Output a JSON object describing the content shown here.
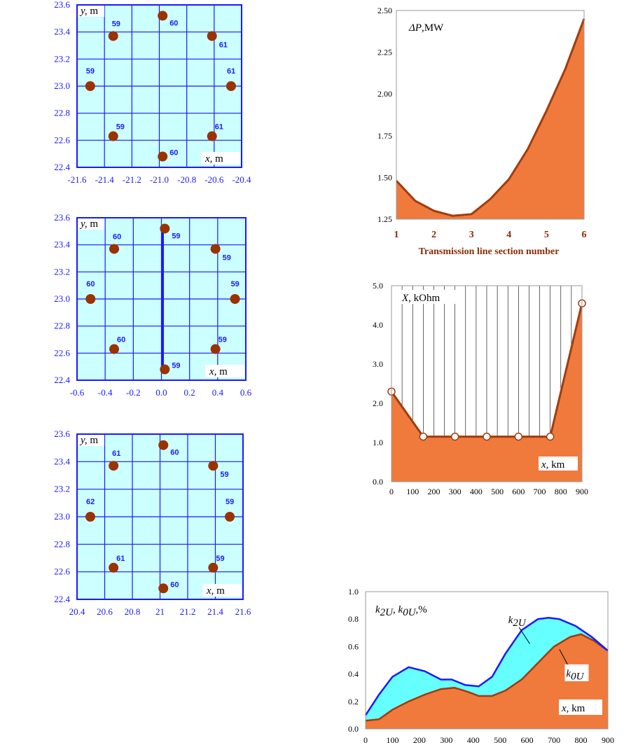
{
  "colors": {
    "panel_bg": "#ccffff",
    "grid": "#1a1aff",
    "dot": "#993300",
    "fill_orange": "#f07a3c",
    "curve_brown": "#a03c10",
    "curve_blue": "#1a1aff",
    "fill_cyan": "#66ffff",
    "brown_text": "#8a2c08"
  },
  "chart_data": [
    {
      "type": "scatter",
      "id": "cond1",
      "ylabel_var": "y,",
      "ylabel_unit": "m",
      "xlabel_var": "x,",
      "xlabel_unit": "m",
      "xlim": [
        -21.65,
        -20.4
      ],
      "ylim": [
        22.4,
        23.6
      ],
      "xticks": [
        "-21.6",
        "-21.4",
        "-21.2",
        "-21.0",
        "-20.8",
        "-20.6",
        "-20.4"
      ],
      "yticks": [
        "23.6",
        "23.4",
        "23.2",
        "23.0",
        "22.8",
        "22.6",
        "22.4"
      ],
      "vertical_line": false,
      "points": [
        {
          "x": -21.0,
          "y": 23.52,
          "label": "60"
        },
        {
          "x": -21.375,
          "y": 23.37,
          "label": "59"
        },
        {
          "x": -20.625,
          "y": 23.37,
          "label": "61"
        },
        {
          "x": -21.55,
          "y": 23.0,
          "label": "59"
        },
        {
          "x": -20.48,
          "y": 23.0,
          "label": "61"
        },
        {
          "x": -21.375,
          "y": 22.63,
          "label": "59"
        },
        {
          "x": -20.625,
          "y": 22.63,
          "label": "61"
        },
        {
          "x": -21.0,
          "y": 22.48,
          "label": "60"
        }
      ]
    },
    {
      "type": "scatter",
      "id": "cond2",
      "ylabel_var": "y,",
      "ylabel_unit": "m",
      "xlabel_var": "x,",
      "xlabel_unit": "m",
      "xlim": [
        -0.65,
        0.6
      ],
      "ylim": [
        22.4,
        23.6
      ],
      "xticks": [
        "-0.6",
        "-0.4",
        "-0.2",
        "0.0",
        "0.2",
        "0.4",
        "0.6"
      ],
      "yticks": [
        "23.6",
        "23.4",
        "23.2",
        "23.0",
        "22.8",
        "22.6",
        "22.4"
      ],
      "vertical_line": true,
      "points": [
        {
          "x": 0.0,
          "y": 23.52,
          "label": "59"
        },
        {
          "x": -0.375,
          "y": 23.37,
          "label": "60"
        },
        {
          "x": 0.375,
          "y": 23.37,
          "label": "59"
        },
        {
          "x": -0.55,
          "y": 23.0,
          "label": "60"
        },
        {
          "x": 0.52,
          "y": 23.0,
          "label": "59"
        },
        {
          "x": -0.375,
          "y": 22.63,
          "label": "60"
        },
        {
          "x": 0.375,
          "y": 22.63,
          "label": "59"
        },
        {
          "x": 0.0,
          "y": 22.48,
          "label": "59"
        }
      ]
    },
    {
      "type": "scatter",
      "id": "cond3",
      "ylabel_var": "y,",
      "ylabel_unit": "m",
      "xlabel_var": "x,",
      "xlabel_unit": "m",
      "xlim": [
        20.35,
        21.6
      ],
      "ylim": [
        22.4,
        23.6
      ],
      "xticks": [
        "20.4",
        "20.6",
        "20.8",
        "21",
        "21.2",
        "21.4",
        "21.6"
      ],
      "yticks": [
        "23.6",
        "23.4",
        "23.2",
        "23.0",
        "22.8",
        "22.6",
        "22.4"
      ],
      "vertical_line": false,
      "points": [
        {
          "x": 21.0,
          "y": 23.52,
          "label": "60"
        },
        {
          "x": 20.625,
          "y": 23.37,
          "label": "61"
        },
        {
          "x": 21.375,
          "y": 23.37,
          "label": "59"
        },
        {
          "x": 20.45,
          "y": 23.0,
          "label": "62"
        },
        {
          "x": 21.5,
          "y": 23.0,
          "label": "59"
        },
        {
          "x": 20.625,
          "y": 22.63,
          "label": "61"
        },
        {
          "x": 21.375,
          "y": 22.63,
          "label": "59"
        },
        {
          "x": 21.0,
          "y": 22.48,
          "label": "60"
        }
      ]
    },
    {
      "type": "area",
      "id": "dp",
      "title_sym": "ΔP",
      "title_rest": ",MW",
      "xlabel": "Transmission line section number",
      "xlim": [
        1,
        6
      ],
      "ylim": [
        1.25,
        2.5
      ],
      "xticks": [
        "1",
        "2",
        "3",
        "4",
        "5",
        "6"
      ],
      "yticks": [
        "2.50",
        "2.25",
        "2.00",
        "1.75",
        "1.50",
        "1.25"
      ],
      "x": [
        1,
        1.5,
        2,
        2.5,
        3,
        3.5,
        4,
        4.5,
        5,
        5.5,
        6
      ],
      "y": [
        1.48,
        1.36,
        1.3,
        1.27,
        1.28,
        1.37,
        1.49,
        1.67,
        1.9,
        2.15,
        2.45
      ]
    },
    {
      "type": "area",
      "id": "xres",
      "title_var": "X",
      "title_rest": ", kOhm",
      "xlabel_var": "x,",
      "xlabel_unit": "km",
      "xlim": [
        0,
        900
      ],
      "ylim": [
        0,
        5
      ],
      "xticks": [
        "0",
        "100",
        "200",
        "300",
        "400",
        "500",
        "600",
        "700",
        "800",
        "900"
      ],
      "yticks": [
        "5.0",
        "4.0",
        "3.0",
        "2.0",
        "1.0",
        "0.0"
      ],
      "x": [
        0,
        150,
        300,
        450,
        600,
        750,
        900
      ],
      "y": [
        2.3,
        1.15,
        1.15,
        1.15,
        1.15,
        1.15,
        4.55
      ]
    },
    {
      "type": "area",
      "id": "kfactor",
      "title": "k2U, k0U,%",
      "xlabel_var": "x,",
      "xlabel_unit": "km",
      "xlim": [
        0,
        900
      ],
      "ylim": [
        0,
        1
      ],
      "xticks": [
        "0",
        "100",
        "200",
        "300",
        "400",
        "500",
        "600",
        "700",
        "800",
        "900"
      ],
      "yticks": [
        "1.0",
        "0.8",
        "0.6",
        "0.4",
        "0.2",
        "0.0"
      ],
      "series": [
        {
          "name": "k2U",
          "x": [
            0,
            50,
            100,
            160,
            220,
            280,
            320,
            370,
            420,
            470,
            520,
            580,
            640,
            680,
            720,
            780,
            840,
            900
          ],
          "y": [
            0.1,
            0.25,
            0.38,
            0.45,
            0.42,
            0.36,
            0.36,
            0.32,
            0.31,
            0.38,
            0.55,
            0.72,
            0.8,
            0.81,
            0.8,
            0.75,
            0.67,
            0.57
          ]
        },
        {
          "name": "k0U",
          "x": [
            0,
            50,
            100,
            160,
            220,
            280,
            330,
            380,
            420,
            470,
            520,
            580,
            640,
            700,
            760,
            800,
            850,
            900
          ],
          "y": [
            0.06,
            0.07,
            0.14,
            0.2,
            0.25,
            0.29,
            0.3,
            0.27,
            0.24,
            0.24,
            0.28,
            0.36,
            0.48,
            0.6,
            0.67,
            0.69,
            0.64,
            0.57
          ]
        }
      ]
    }
  ]
}
